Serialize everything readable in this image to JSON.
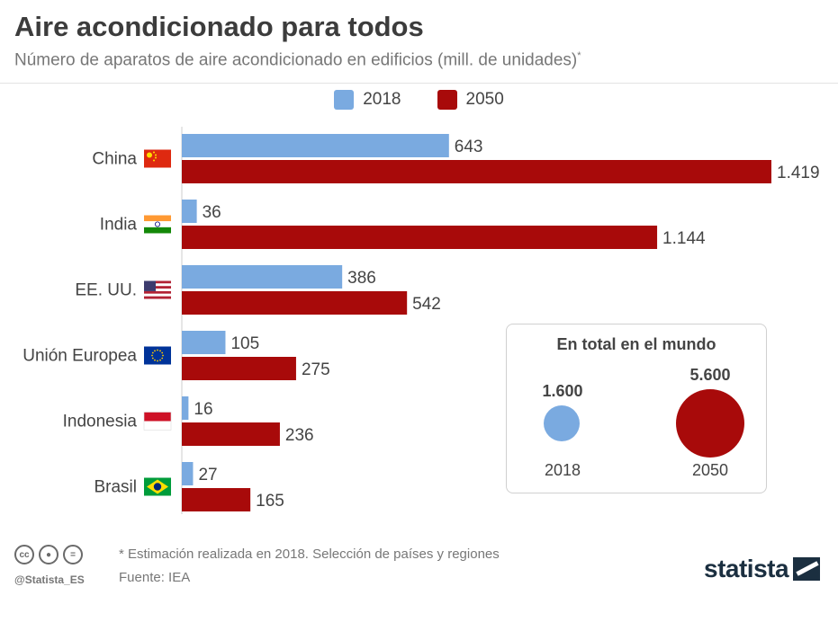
{
  "header": {
    "title": "Aire acondicionado para todos",
    "subtitle": "Número de aparatos de aire acondicionado en edificios (mill. de unidades)",
    "subtitle_mark": "*"
  },
  "colors": {
    "2018": "#7aaae0",
    "2050": "#a80a0a"
  },
  "chart_data": {
    "type": "bar",
    "orientation": "horizontal",
    "categories": [
      "China",
      "India",
      "EE. UU.",
      "Unión Europea",
      "Indonesia",
      "Brasil"
    ],
    "series": [
      {
        "name": "2018",
        "values": [
          643,
          36,
          386,
          105,
          16,
          27
        ],
        "labels": [
          "643",
          "36",
          "386",
          "105",
          "16",
          "27"
        ]
      },
      {
        "name": "2050",
        "values": [
          1419,
          1144,
          542,
          275,
          236,
          165
        ],
        "labels": [
          "1.419",
          "1.144",
          "542",
          "275",
          "236",
          "165"
        ]
      }
    ],
    "title": "Aire acondicionado para todos",
    "xlim": [
      0,
      1419
    ],
    "legend": "top-center",
    "grid": false
  },
  "flags": [
    "china-flag-icon",
    "india-flag-icon",
    "usa-flag-icon",
    "eu-flag-icon",
    "indonesia-flag-icon",
    "brazil-flag-icon"
  ],
  "world_total": {
    "title": "En total en el mundo",
    "items": [
      {
        "year": "2018",
        "value_label": "1.600",
        "value": 1600
      },
      {
        "year": "2050",
        "value_label": "5.600",
        "value": 5600
      }
    ]
  },
  "footer": {
    "note": "* Estimación realizada en 2018. Selección de países y regiones",
    "source": "Fuente: IEA",
    "handle": "@Statista_ES",
    "brand": "statista",
    "cc_icons": [
      "cc",
      "by",
      "nd"
    ]
  }
}
